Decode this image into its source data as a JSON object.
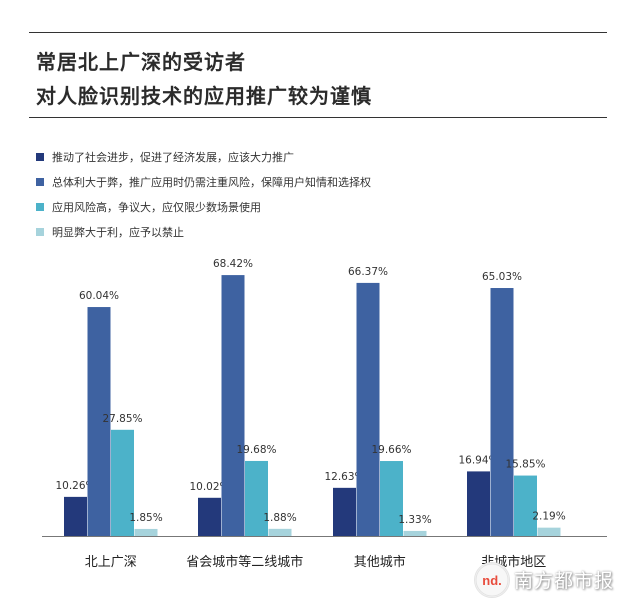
{
  "title_lines": [
    "常居北上广深的受访者",
    "对人脸识别技术的应用推广较为谨慎"
  ],
  "watermark": {
    "logo_label": "nd.",
    "text": "南方都市报"
  },
  "colors": {
    "s1": "#23397b",
    "s2": "#3e62a1",
    "s3": "#4cb2c9",
    "s4": "#a6d3dc",
    "axis": "#777777",
    "rule": "#333333"
  },
  "chart_data": {
    "type": "bar",
    "title": "常居北上广深的受访者 对人脸识别技术的应用推广较为谨慎",
    "xlabel": "",
    "ylabel": "",
    "ylim": [
      0,
      75
    ],
    "grid": false,
    "legend_position": "top-left",
    "categories": [
      "北上广深",
      "省会城市等二线城市",
      "其他城市",
      "非城市地区"
    ],
    "series": [
      {
        "name": "推动了社会进步，促进了经济发展，应该大力推广",
        "values": [
          10.26,
          10.02,
          12.63,
          16.94
        ],
        "labels": [
          "10.26%",
          "10.02%",
          "12.63%",
          "16.94%"
        ]
      },
      {
        "name": "总体利大于弊，推广应用时仍需注重风险，保障用户知情和选择权",
        "values": [
          60.04,
          68.42,
          66.37,
          65.03
        ],
        "labels": [
          "60.04%",
          "68.42%",
          "66.37%",
          "65.03%"
        ]
      },
      {
        "name": "应用风险高，争议大，应仅限少数场景使用",
        "values": [
          27.85,
          19.68,
          19.66,
          15.85
        ],
        "labels": [
          "27.85%",
          "19.68%",
          "19.66%",
          "15.85%"
        ]
      },
      {
        "name": "明显弊大于利，应予以禁止",
        "values": [
          1.85,
          1.88,
          1.33,
          2.19
        ],
        "labels": [
          "1.85%",
          "1.88%",
          "1.33%",
          "2.19%"
        ]
      }
    ]
  }
}
